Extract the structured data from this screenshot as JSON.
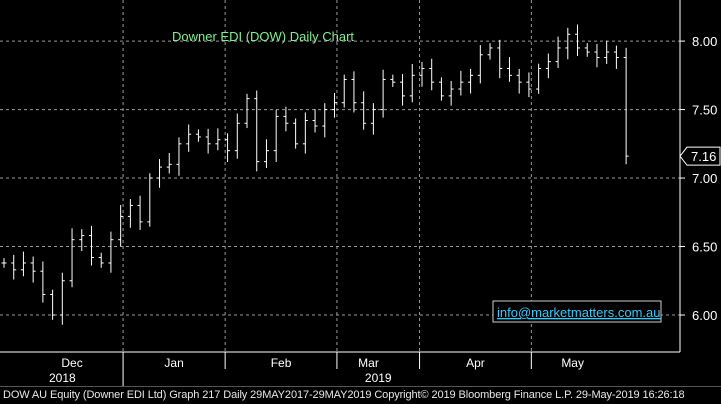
{
  "chart_data": {
    "type": "ohlc",
    "title": "Downer EDI (DOW) Daily Chart",
    "watermark": "info@marketmatters.com.au",
    "y_ticks": [
      "8.00",
      "7.50",
      "7.00",
      "6.50",
      "6.00"
    ],
    "y_tick_values": [
      8.0,
      7.5,
      7.0,
      6.5,
      6.0
    ],
    "ylim": [
      5.73,
      8.3
    ],
    "last_price_label": "7.16",
    "last_price": 7.16,
    "month_labels": [
      "Dec",
      "Jan",
      "Feb",
      "Mar",
      "Apr",
      "May"
    ],
    "month_label_days": [
      14,
      35,
      57,
      75,
      97,
      117
    ],
    "month_separator_days": [
      24.5,
      45.5,
      68.5,
      85.5,
      108.5
    ],
    "year_labels": [
      "2018",
      "2019"
    ],
    "year_label_days": [
      12,
      77
    ],
    "year_separator_day": 24.5,
    "x_range": [
      0,
      136
    ],
    "colors": {
      "background": "#000000",
      "bars": "#ffffff",
      "title": "#7cf08c",
      "grid": "#9a9a9a",
      "watermark": "#33ccff",
      "text": "#ffffff"
    },
    "daily_prices": {
      "x": [
        0,
        2,
        4,
        6,
        8,
        10,
        12,
        14,
        16,
        18,
        20,
        22,
        24,
        26,
        28,
        30,
        32,
        34,
        36,
        38,
        40,
        42,
        44,
        46,
        48,
        50,
        52,
        54,
        56,
        58,
        60,
        62,
        64,
        66,
        68,
        70,
        72,
        74,
        76,
        78,
        80,
        82,
        84,
        86,
        88,
        90,
        92,
        94,
        96,
        98,
        100,
        102,
        104,
        106,
        108,
        110,
        112,
        114,
        116,
        118,
        120,
        122,
        124,
        126,
        128
      ],
      "close": [
        6.38,
        6.33,
        6.38,
        6.32,
        6.15,
        6.0,
        6.25,
        6.55,
        6.58,
        6.42,
        6.38,
        6.55,
        6.72,
        6.8,
        6.68,
        7.0,
        7.08,
        7.1,
        7.25,
        7.32,
        7.3,
        7.25,
        7.28,
        7.2,
        7.4,
        7.58,
        7.12,
        7.2,
        7.45,
        7.4,
        7.25,
        7.42,
        7.38,
        7.5,
        7.55,
        7.72,
        7.55,
        7.4,
        7.5,
        7.72,
        7.7,
        7.6,
        7.75,
        7.8,
        7.7,
        7.6,
        7.65,
        7.7,
        7.75,
        7.9,
        7.95,
        7.8,
        7.75,
        7.7,
        7.65,
        7.8,
        7.85,
        7.95,
        8.05,
        7.95,
        7.92,
        7.88,
        7.92,
        7.88,
        7.16
      ]
    }
  },
  "footer": {
    "text": "DOW AU Equity (Downer EDI Ltd) Graph 217  Daily 29MAY2017-29MAY2019 Copyright© 2019 Bloomberg Finance L.P. 29-May-2019 16:26:18"
  }
}
